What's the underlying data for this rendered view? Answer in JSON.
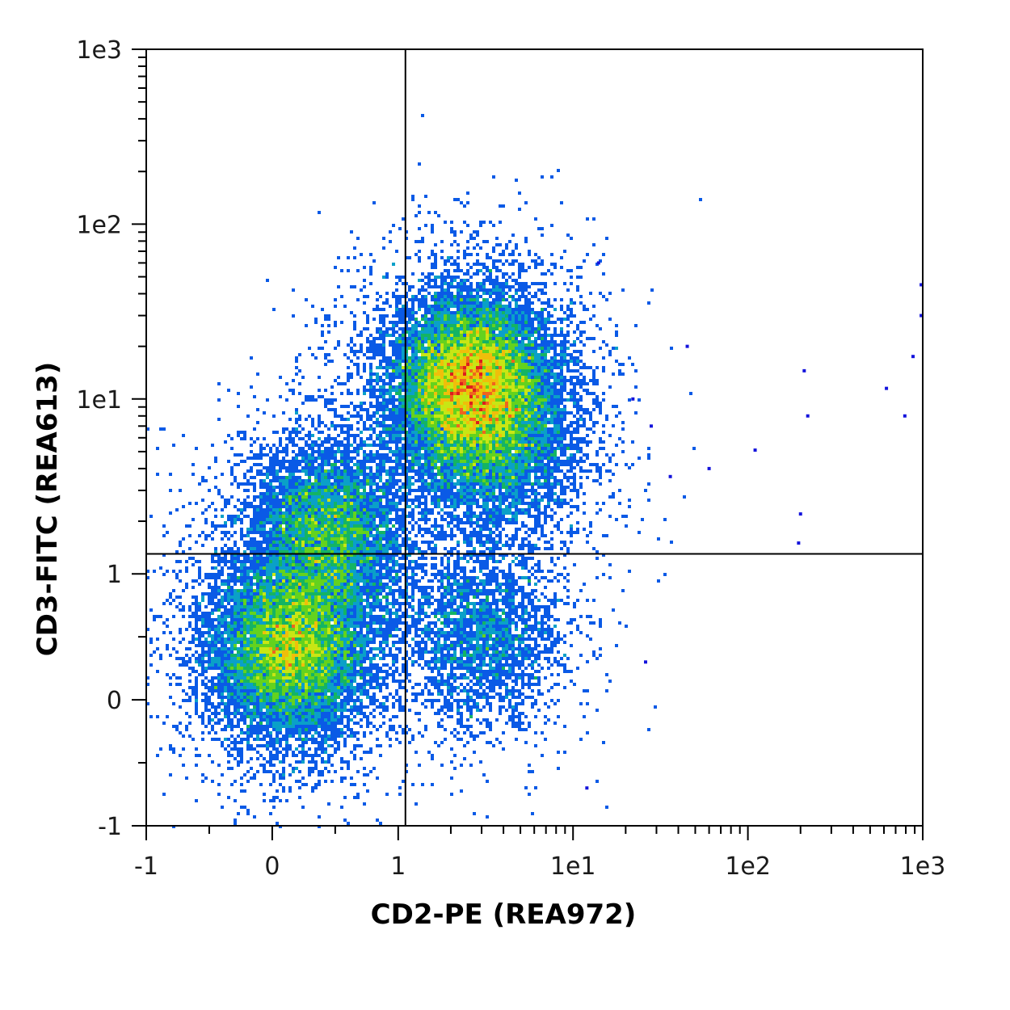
{
  "chart_data": {
    "type": "scatter",
    "subtype": "flow-cytometry-density-dot-plot",
    "xlabel": "CD2-PE (REA972)",
    "ylabel": "CD3-FITC (REA613)",
    "x_scale": "hlog",
    "y_scale": "hlog",
    "xlim": [
      -1,
      1000
    ],
    "ylim": [
      -1,
      1000
    ],
    "x_ticks": [
      {
        "value": -1,
        "label": "-1"
      },
      {
        "value": 0,
        "label": "0"
      },
      {
        "value": 1,
        "label": "1"
      },
      {
        "value": 10,
        "label": "1e1"
      },
      {
        "value": 100,
        "label": "1e2"
      },
      {
        "value": 1000,
        "label": "1e3"
      }
    ],
    "y_ticks": [
      {
        "value": -1,
        "label": "-1"
      },
      {
        "value": 0,
        "label": "0"
      },
      {
        "value": 1,
        "label": "1"
      },
      {
        "value": 10,
        "label": "1e1"
      },
      {
        "value": 100,
        "label": "1e2"
      },
      {
        "value": 1000,
        "label": "1e3"
      }
    ],
    "gates": {
      "x": 1.1,
      "y": 1.3
    },
    "grid": false,
    "legend": "none",
    "populations": [
      {
        "cx": 0.15,
        "cy": 0.4,
        "weight": 0.28
      },
      {
        "cx": 0.45,
        "cy": 1.7,
        "weight": 0.17
      },
      {
        "cx": 2.6,
        "cy": 12,
        "weight": 0.4
      },
      {
        "cx": 3.8,
        "cy": 5,
        "weight": 0.08
      },
      {
        "cx": 3.0,
        "cy": 0.5,
        "weight": 0.07
      }
    ],
    "sparse_points": [
      {
        "x": 14,
        "y": 60
      },
      {
        "x": 45,
        "y": 20
      },
      {
        "x": 22,
        "y": 10
      },
      {
        "x": 28,
        "y": 7
      },
      {
        "x": 36,
        "y": 3.6
      },
      {
        "x": 60,
        "y": 4
      },
      {
        "x": 110,
        "y": 5.1
      },
      {
        "x": 210,
        "y": 14.5
      },
      {
        "x": 220,
        "y": 8
      },
      {
        "x": 620,
        "y": 11.5
      },
      {
        "x": 790,
        "y": 8
      },
      {
        "x": 880,
        "y": 17.5
      },
      {
        "x": 980,
        "y": 45
      },
      {
        "x": 980,
        "y": 30
      },
      {
        "x": 200,
        "y": 2.2
      },
      {
        "x": 195,
        "y": 1.5
      },
      {
        "x": 26,
        "y": 0.3
      },
      {
        "x": 12,
        "y": -0.7
      }
    ],
    "colormap": [
      "#1414dc",
      "#0a5ae6",
      "#0aa0c8",
      "#14b464",
      "#64d21e",
      "#c8e614",
      "#f0be0a",
      "#f0641e",
      "#dc1e1e"
    ]
  }
}
